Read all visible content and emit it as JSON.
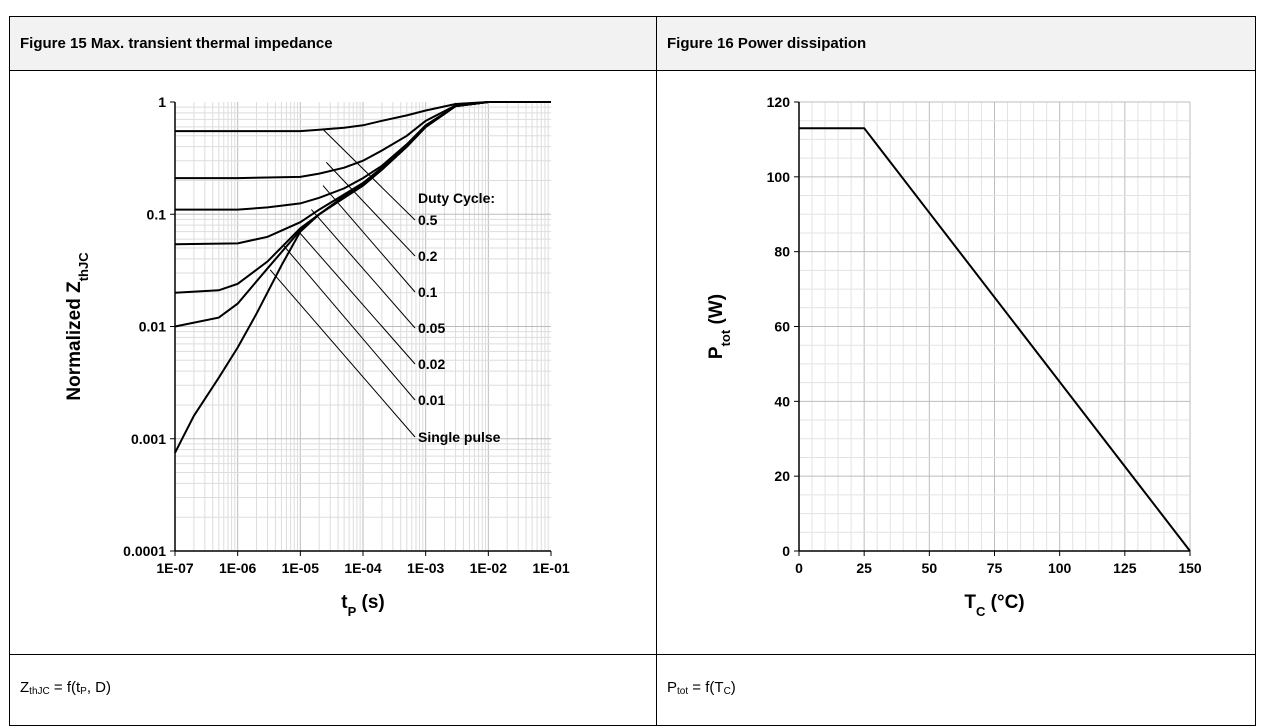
{
  "figures": [
    {
      "header": "Figure 15 Max. transient thermal impedance",
      "footer": {
        "main": "Z",
        "sub": "thJC",
        "rest": " = f(t",
        "sub2": "P",
        "rest2": ", D)"
      }
    },
    {
      "header": "Figure 16 Power dissipation",
      "footer": {
        "main": "P",
        "sub": "tot",
        "rest": " = f(T",
        "sub2": "C",
        "rest2": ")"
      }
    }
  ],
  "chart_data": [
    {
      "type": "line",
      "title": "",
      "xscale": "log",
      "yscale": "log",
      "xlim": [
        1e-07,
        0.1
      ],
      "ylim": [
        0.0001,
        1
      ],
      "xlabel": {
        "main": "t",
        "sub": "P",
        "rest": " (s)"
      },
      "ylabel": {
        "main": "Normalized Z",
        "sub": "thJC"
      },
      "xticks": [
        "1E-07",
        "1E-06",
        "1E-05",
        "1E-04",
        "1E-03",
        "1E-02",
        "1E-01"
      ],
      "yticks": [
        "0.0001",
        "0.001",
        "0.01",
        "0.1",
        "1"
      ],
      "annotation_title": "Duty Cycle:",
      "grid": true,
      "series": [
        {
          "name": "0.5",
          "label": "0.5",
          "x": [
            1e-07,
            1e-06,
            1e-05,
            2e-05,
            5e-05,
            0.0001,
            0.0002,
            0.0005,
            0.001,
            0.003,
            0.01,
            0.1
          ],
          "y": [
            0.55,
            0.55,
            0.55,
            0.565,
            0.59,
            0.62,
            0.68,
            0.76,
            0.84,
            0.96,
            1,
            1
          ]
        },
        {
          "name": "0.2",
          "label": "0.2",
          "x": [
            1e-07,
            1e-06,
            1e-05,
            2e-05,
            5e-05,
            0.0001,
            0.0002,
            0.0005,
            0.001,
            0.003,
            0.01,
            0.1
          ],
          "y": [
            0.21,
            0.21,
            0.215,
            0.23,
            0.26,
            0.3,
            0.37,
            0.5,
            0.68,
            0.93,
            1,
            1
          ]
        },
        {
          "name": "0.1",
          "label": "0.1",
          "x": [
            1e-07,
            1e-06,
            3e-06,
            1e-05,
            2e-05,
            5e-05,
            0.0001,
            0.0002,
            0.0005,
            0.001,
            0.003,
            0.01,
            0.1
          ],
          "y": [
            0.11,
            0.11,
            0.115,
            0.125,
            0.14,
            0.17,
            0.21,
            0.27,
            0.42,
            0.62,
            0.92,
            1,
            1
          ]
        },
        {
          "name": "0.05",
          "label": "0.05",
          "x": [
            1e-07,
            1e-06,
            3e-06,
            1e-05,
            2e-05,
            5e-05,
            0.0001,
            0.0002,
            0.0005,
            0.001,
            0.003,
            0.01,
            0.1
          ],
          "y": [
            0.054,
            0.055,
            0.063,
            0.085,
            0.11,
            0.15,
            0.19,
            0.26,
            0.41,
            0.61,
            0.92,
            1,
            1
          ]
        },
        {
          "name": "0.02",
          "label": "0.02",
          "x": [
            1e-07,
            5e-07,
            1e-06,
            3e-06,
            1e-05,
            2e-05,
            5e-05,
            0.0001,
            0.0002,
            0.0005,
            0.001,
            0.003,
            0.01,
            0.1
          ],
          "y": [
            0.02,
            0.021,
            0.024,
            0.038,
            0.075,
            0.1,
            0.145,
            0.185,
            0.25,
            0.4,
            0.6,
            0.92,
            1,
            1
          ]
        },
        {
          "name": "0.01",
          "label": "0.01",
          "x": [
            1e-07,
            5e-07,
            1e-06,
            3e-06,
            1e-05,
            2e-05,
            5e-05,
            0.0001,
            0.0002,
            0.0005,
            0.001,
            0.003,
            0.01,
            0.1
          ],
          "y": [
            0.01,
            0.012,
            0.016,
            0.033,
            0.072,
            0.1,
            0.14,
            0.18,
            0.25,
            0.4,
            0.6,
            0.92,
            1,
            1
          ]
        },
        {
          "name": "Single pulse",
          "label": "Single pulse",
          "x": [
            1e-07,
            2e-07,
            5e-07,
            1e-06,
            2e-06,
            5e-06,
            1e-05,
            2e-05,
            5e-05,
            0.0001,
            0.0002,
            0.0005,
            0.001,
            0.003,
            0.01,
            0.1
          ],
          "y": [
            0.00075,
            0.0016,
            0.0035,
            0.0065,
            0.013,
            0.035,
            0.07,
            0.1,
            0.14,
            0.18,
            0.25,
            0.4,
            0.6,
            0.92,
            1,
            1
          ]
        }
      ],
      "leaders": [
        {
          "label": "0.5",
          "from": [
            2.3e-05,
            0.57
          ]
        },
        {
          "label": "0.2",
          "from": [
            2.6e-05,
            0.29
          ]
        },
        {
          "label": "0.1",
          "from": [
            2.3e-05,
            0.18
          ]
        },
        {
          "label": "0.05",
          "from": [
            1.5e-05,
            0.11
          ]
        },
        {
          "label": "0.02",
          "from": [
            9e-06,
            0.072
          ]
        },
        {
          "label": "0.01",
          "from": [
            5.5e-06,
            0.052
          ]
        },
        {
          "label": "Single pulse",
          "from": [
            3.3e-06,
            0.032
          ]
        }
      ]
    },
    {
      "type": "line",
      "title": "",
      "xlim": [
        0,
        150
      ],
      "ylim": [
        0,
        120
      ],
      "xlabel": {
        "main": "T",
        "sub": "C",
        "rest": " (°C)"
      },
      "ylabel": {
        "main": "P",
        "sub": "tot",
        "rest": " (W)"
      },
      "xticks": [
        0,
        25,
        50,
        75,
        100,
        125,
        150
      ],
      "yticks": [
        0,
        20,
        40,
        60,
        80,
        100,
        120
      ],
      "grid": true,
      "series": [
        {
          "x": [
            0,
            25,
            150
          ],
          "y": [
            113,
            113,
            0
          ]
        }
      ]
    }
  ]
}
